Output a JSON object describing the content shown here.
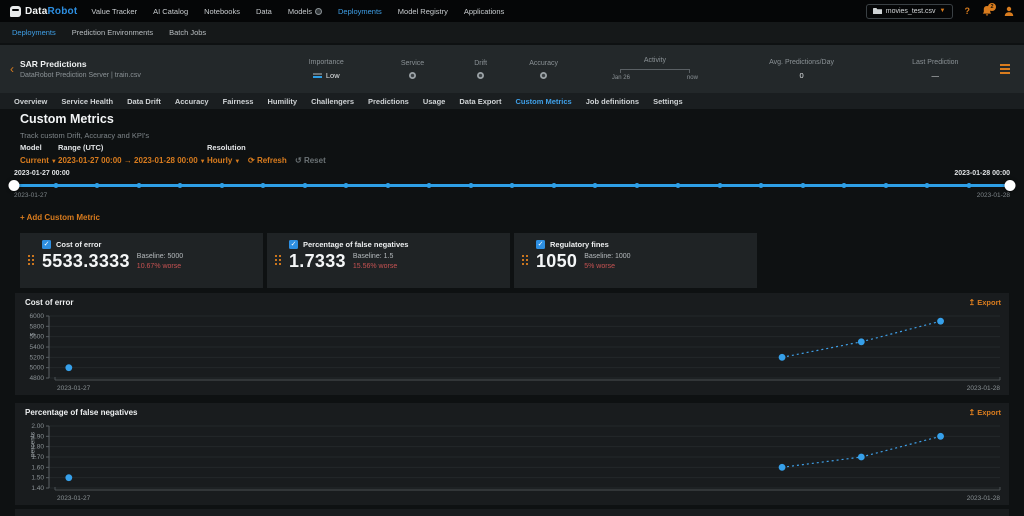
{
  "colors": {
    "accent_blue": "#2d8fe2",
    "accent_orange": "#d97c1e",
    "negative_red": "#c75252",
    "slider_blue": "#2e9fe6"
  },
  "top_nav": {
    "logo": {
      "part1": "Data",
      "part2": "Robot"
    },
    "items": [
      {
        "label": "Value Tracker"
      },
      {
        "label": "AI Catalog"
      },
      {
        "label": "Notebooks"
      },
      {
        "label": "Data"
      },
      {
        "label": "Models",
        "badge": true
      },
      {
        "label": "Deployments",
        "active": true
      },
      {
        "label": "Model Registry"
      },
      {
        "label": "Applications"
      }
    ],
    "right": {
      "file_label": "movies_test.csv",
      "help_label": "?",
      "notifications_count": "2"
    }
  },
  "sub_nav": {
    "items": [
      {
        "label": "Deployments",
        "active": true
      },
      {
        "label": "Prediction Environments"
      },
      {
        "label": "Batch Jobs"
      }
    ]
  },
  "deployment_header": {
    "title": "SAR Predictions",
    "subtitle": "DataRobot Prediction Server | train.csv",
    "importance": {
      "label": "Importance",
      "value": "Low"
    },
    "service": {
      "label": "Service"
    },
    "drift": {
      "label": "Drift"
    },
    "accuracy": {
      "label": "Accuracy"
    },
    "activity": {
      "label": "Activity",
      "start": "Jan 26",
      "end": "now"
    },
    "avg_predictions": {
      "label": "Avg. Predictions/Day",
      "value": "0"
    },
    "last_prediction": {
      "label": "Last Prediction",
      "value": "—"
    }
  },
  "tabs": {
    "active": "Custom Metrics",
    "items": [
      "Overview",
      "Service Health",
      "Data Drift",
      "Accuracy",
      "Fairness",
      "Humility",
      "Challengers",
      "Predictions",
      "Usage",
      "Data Export",
      "Custom Metrics",
      "Job definitions",
      "Settings"
    ]
  },
  "page": {
    "title": "Custom Metrics",
    "subtitle": "Track custom Drift, Accuracy and KPI's"
  },
  "controls": {
    "model_label": "Model",
    "model_value": "Current",
    "range_label": "Range (UTC)",
    "range_value": "2023-01-27  00:00 → 2023-01-28  00:00",
    "resolution_label": "Resolution",
    "resolution_value": "Hourly",
    "refresh_label": "Refresh",
    "reset_label": "Reset"
  },
  "slider": {
    "start_label_top": "2023-01-27 00:00",
    "start_label_bottom": "2023-01-27",
    "end_label_top": "2023-01-28 00:00",
    "end_label_bottom": "2023-01-28",
    "intermediate_dots": 23
  },
  "add_metric_label": "+ Add Custom Metric",
  "export_label": "Export",
  "metric_cards": [
    {
      "label": "Cost of error",
      "value": "5533.3333",
      "baseline": "Baseline: 5000",
      "delta": "10.67% worse",
      "checked": true
    },
    {
      "label": "Percentage of false negatives",
      "value": "1.7333",
      "baseline": "Baseline: 1.5",
      "delta": "15.56% worse",
      "checked": true
    },
    {
      "label": "Regulatory fines",
      "value": "1050",
      "baseline": "Baseline: 1000",
      "delta": "5% worse",
      "checked": true
    }
  ],
  "chart_data": [
    {
      "type": "scatter",
      "title": "Cost of error",
      "ylabel": "$",
      "ylim": [
        4800,
        6000
      ],
      "yticks": [
        {
          "v": 4800,
          "label": "4800"
        },
        {
          "v": 5000,
          "label": "5000"
        },
        {
          "v": 5200,
          "label": "5200"
        },
        {
          "v": 5400,
          "label": "5400"
        },
        {
          "v": 5600,
          "label": "5600"
        },
        {
          "v": 5800,
          "label": "5800"
        },
        {
          "v": 6000,
          "label": "6000"
        }
      ],
      "x_range_hours": [
        0,
        24
      ],
      "x_axis_labels": [
        "2023-01-27",
        "2023-01-28"
      ],
      "points": [
        {
          "hour": 0.5,
          "value": 5000
        },
        {
          "hour": 18.5,
          "value": 5200
        },
        {
          "hour": 20.5,
          "value": 5500
        },
        {
          "hour": 22.5,
          "value": 5900
        }
      ],
      "line_style": "dotted",
      "grid": true,
      "legend": "none"
    },
    {
      "type": "scatter",
      "title": "Percentage of false negatives",
      "ylabel": "percents",
      "ylim": [
        1.4,
        2.0
      ],
      "yticks": [
        {
          "v": 1.4,
          "label": "1.40"
        },
        {
          "v": 1.5,
          "label": "1.50"
        },
        {
          "v": 1.6,
          "label": "1.60"
        },
        {
          "v": 1.7,
          "label": "1.70"
        },
        {
          "v": 1.8,
          "label": "1.80"
        },
        {
          "v": 1.9,
          "label": "1.90"
        },
        {
          "v": 2.0,
          "label": "2.00"
        }
      ],
      "x_range_hours": [
        0,
        24
      ],
      "x_axis_labels": [
        "2023-01-27",
        "2023-01-28"
      ],
      "points": [
        {
          "hour": 0.5,
          "value": 1.5
        },
        {
          "hour": 18.5,
          "value": 1.6
        },
        {
          "hour": 20.5,
          "value": 1.7
        },
        {
          "hour": 22.5,
          "value": 1.9
        }
      ],
      "line_style": "dotted",
      "grid": true,
      "legend": "none"
    }
  ]
}
